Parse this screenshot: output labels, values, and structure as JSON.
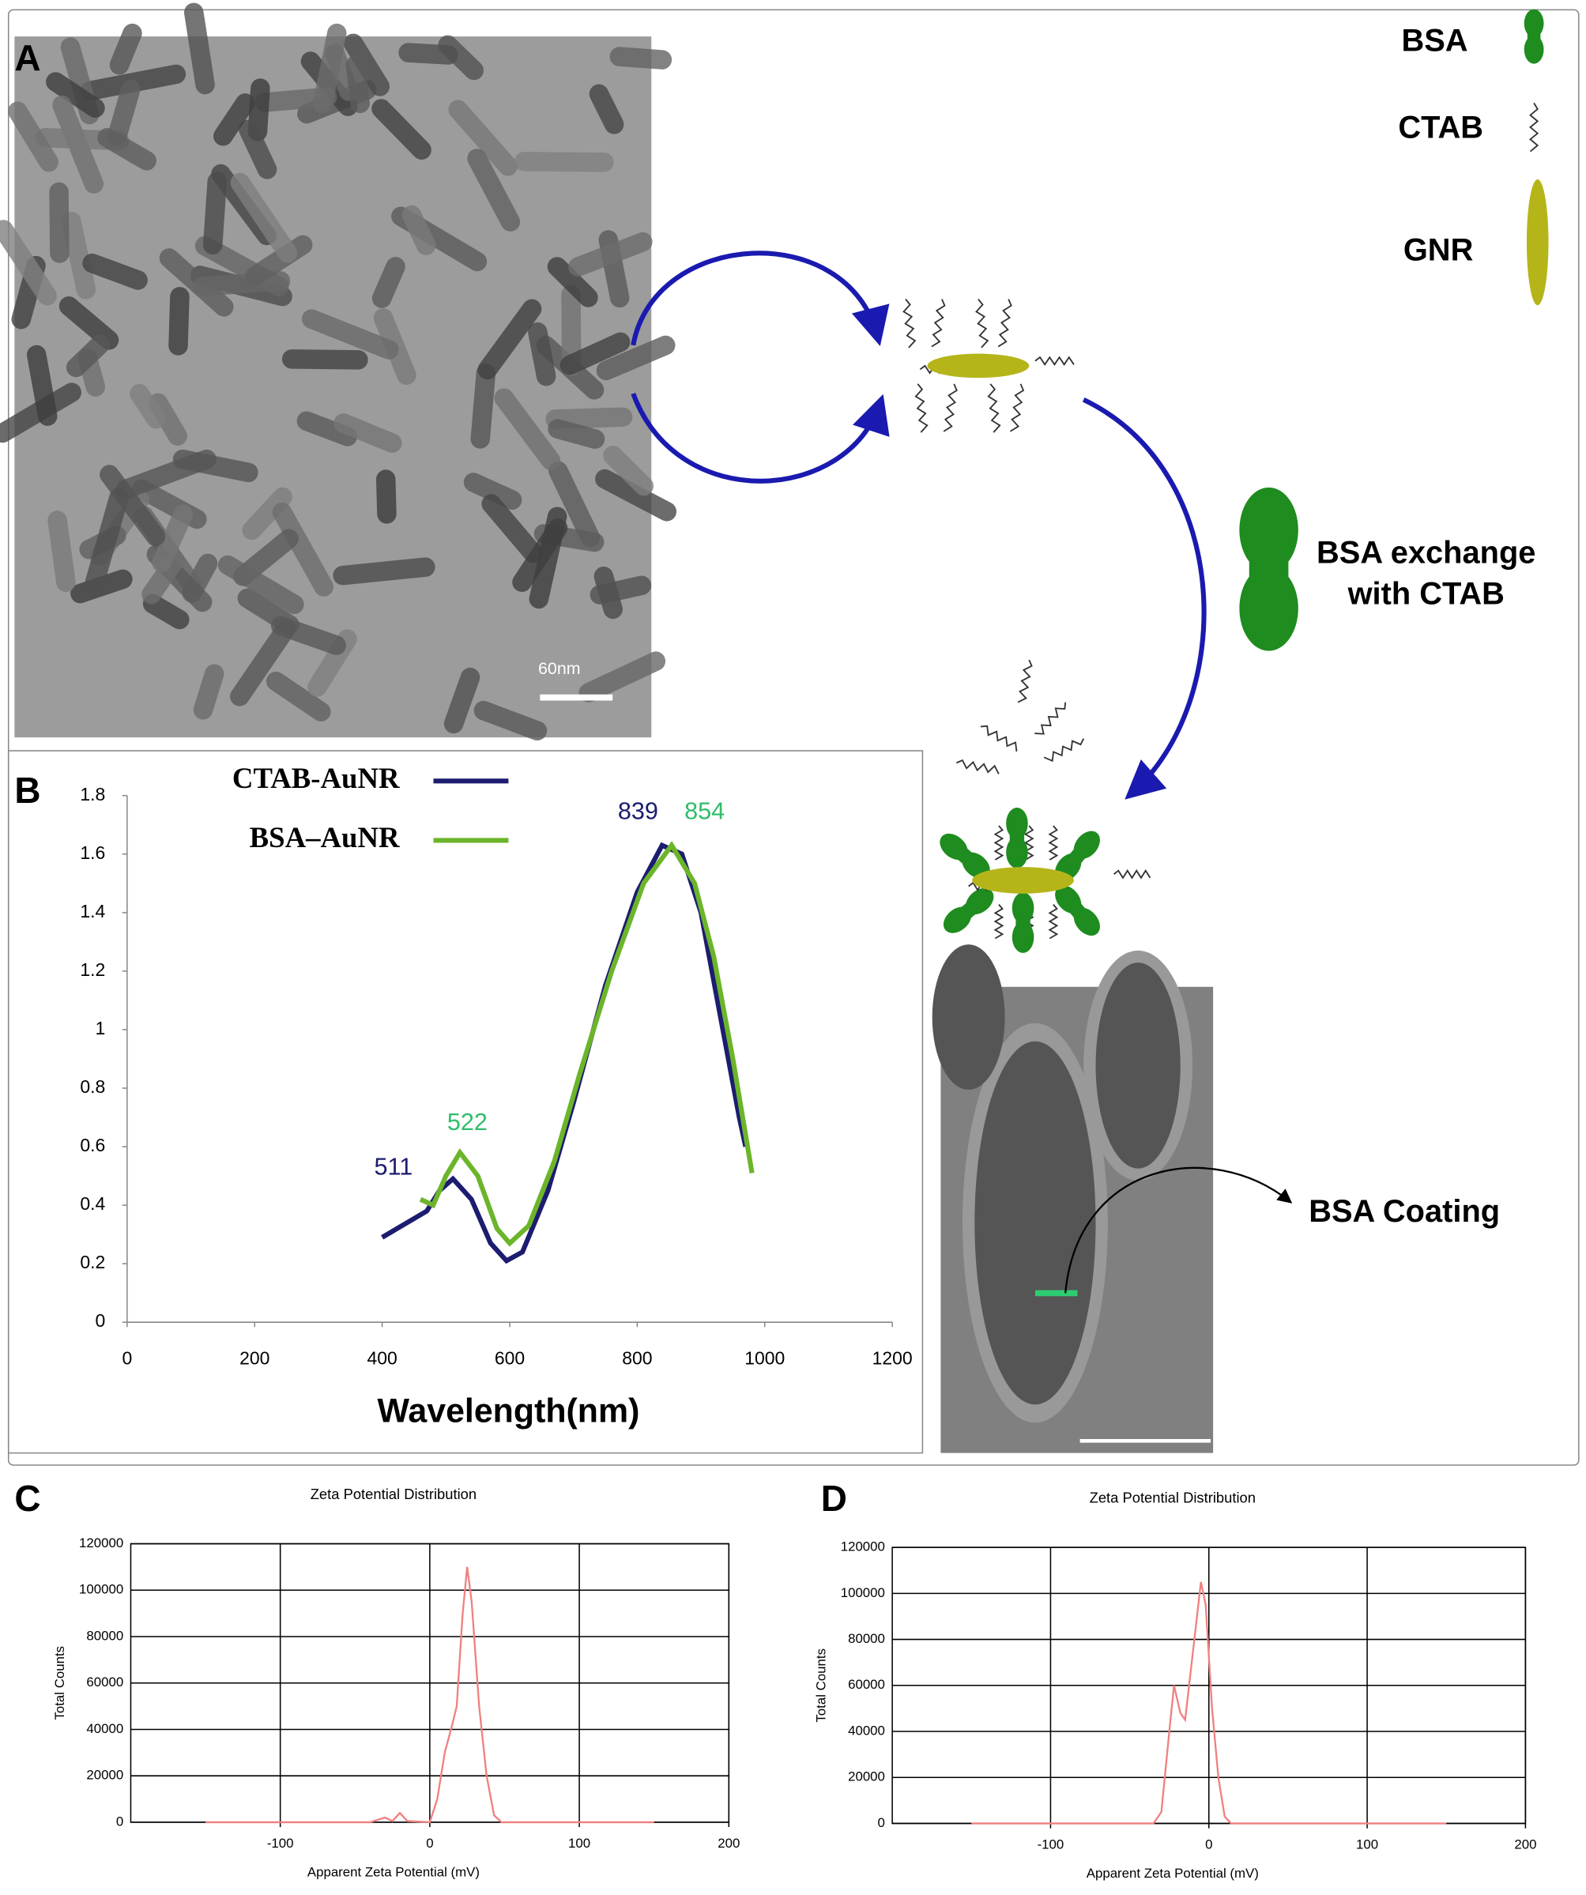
{
  "panels": [
    "A",
    "B",
    "C",
    "D"
  ],
  "diagram": {
    "legend": [
      "BSA",
      "CTAB",
      "GNR"
    ],
    "exchange": [
      "BSA exchange",
      "with CTAB"
    ],
    "coating": "BSA Coating",
    "scale": "60nm"
  },
  "chart_data": [
    {
      "type": "line",
      "x_label": "Wavelength(nm)",
      "xlim": [
        0,
        1200
      ],
      "ylim": [
        0,
        1.8
      ],
      "xticks": [
        0,
        200,
        400,
        600,
        800,
        1000,
        1200
      ],
      "yticks": [
        0,
        0.2,
        0.4,
        0.6,
        0.8,
        1,
        1.2,
        1.4,
        1.6,
        1.8
      ],
      "grid": false,
      "series": [
        {
          "name": "CTAB-AuNR",
          "color": "#1c1c70",
          "x": [
            400,
            470,
            490,
            511,
            540,
            570,
            595,
            620,
            660,
            700,
            750,
            800,
            839,
            870,
            900,
            930,
            960,
            970
          ],
          "values": [
            0.29,
            0.38,
            0.45,
            0.49,
            0.42,
            0.27,
            0.21,
            0.24,
            0.45,
            0.75,
            1.15,
            1.47,
            1.63,
            1.6,
            1.4,
            1.05,
            0.7,
            0.6
          ]
        },
        {
          "name": "BSA–AuNR",
          "color": "#6cb52a",
          "x": [
            460,
            480,
            500,
            522,
            550,
            580,
            600,
            630,
            670,
            710,
            760,
            810,
            854,
            890,
            920,
            950,
            980
          ],
          "values": [
            0.42,
            0.4,
            0.5,
            0.58,
            0.5,
            0.32,
            0.27,
            0.33,
            0.55,
            0.85,
            1.2,
            1.5,
            1.63,
            1.5,
            1.25,
            0.9,
            0.51
          ]
        }
      ],
      "annotations": [
        {
          "text": "511",
          "color": "#1c1c70"
        },
        {
          "text": "522",
          "color": "#2ebd6b"
        },
        {
          "text": "839",
          "color": "#1c1c70"
        },
        {
          "text": "854",
          "color": "#2ebd6b"
        }
      ]
    },
    {
      "type": "line",
      "title": "Zeta Potential Distribution",
      "x_label": "Apparent Zeta Potential (mV)",
      "y_label": "Total Counts",
      "xlim": [
        -200,
        200
      ],
      "ylim": [
        0,
        120000
      ],
      "xticks": [
        -100,
        0,
        100,
        200
      ],
      "yticks": [
        0,
        20000,
        40000,
        60000,
        80000,
        100000,
        120000
      ],
      "grid": true,
      "color": "#f08080",
      "x": [
        -150,
        -40,
        -30,
        -25,
        -20,
        -15,
        0,
        5,
        10,
        15,
        18,
        22,
        25,
        28,
        33,
        38,
        43,
        48,
        150
      ],
      "values": [
        0,
        0,
        2000,
        500,
        4000,
        500,
        0,
        10000,
        30000,
        42000,
        50000,
        90000,
        110000,
        95000,
        50000,
        20000,
        3000,
        0,
        0
      ]
    },
    {
      "type": "line",
      "title": "Zeta Potential Distribution",
      "x_label": "Apparent Zeta Potential (mV)",
      "y_label": "Total Counts",
      "xlim": [
        -200,
        200
      ],
      "ylim": [
        0,
        120000
      ],
      "xticks": [
        -100,
        0,
        100,
        200
      ],
      "yticks": [
        0,
        20000,
        40000,
        60000,
        80000,
        100000,
        120000
      ],
      "grid": true,
      "color": "#f08080",
      "x": [
        -150,
        -35,
        -30,
        -25,
        -22,
        -18,
        -15,
        -10,
        -5,
        -2,
        2,
        6,
        10,
        14,
        150
      ],
      "values": [
        0,
        0,
        5000,
        40000,
        60000,
        48000,
        45000,
        75000,
        105000,
        95000,
        50000,
        20000,
        3000,
        0,
        0
      ]
    }
  ]
}
